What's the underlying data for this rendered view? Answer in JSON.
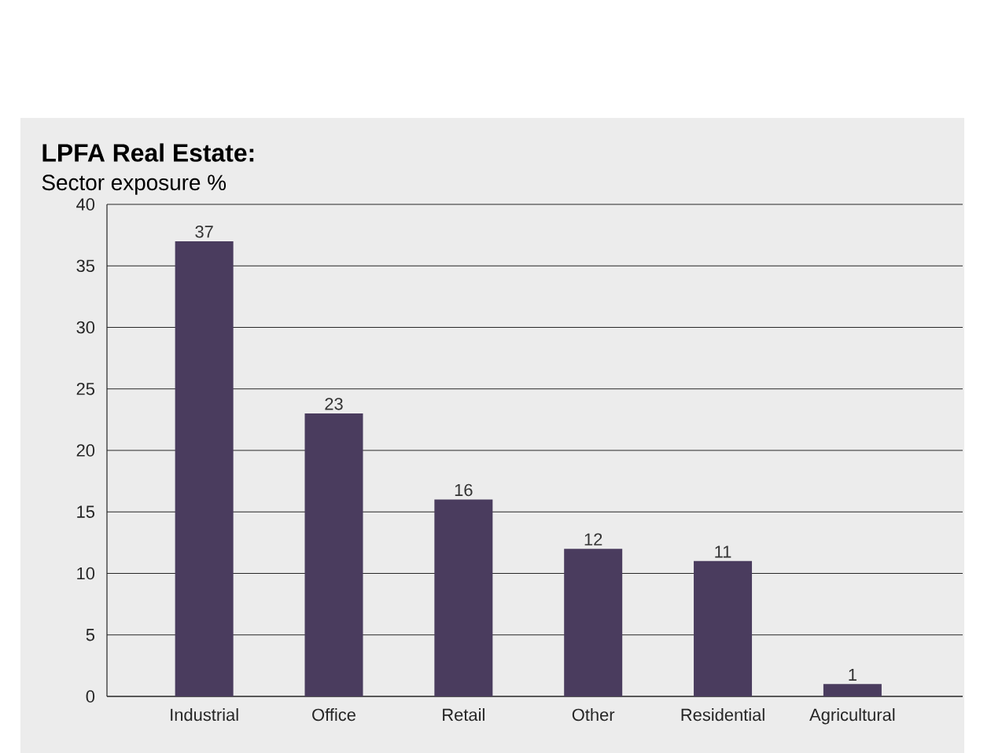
{
  "chart_data": {
    "type": "bar",
    "title": "LPFA Real Estate:",
    "subtitle": "Sector exposure %",
    "categories": [
      "Industrial",
      "Office",
      "Retail",
      "Other",
      "Residential",
      "Agricultural"
    ],
    "values": [
      37,
      23,
      16,
      12,
      11,
      1
    ],
    "color": "#4a3c5e",
    "ylim": [
      0,
      40
    ],
    "yticks": [
      0,
      5,
      10,
      15,
      20,
      25,
      30,
      35,
      40
    ],
    "grid": "y",
    "data_labels": true
  }
}
